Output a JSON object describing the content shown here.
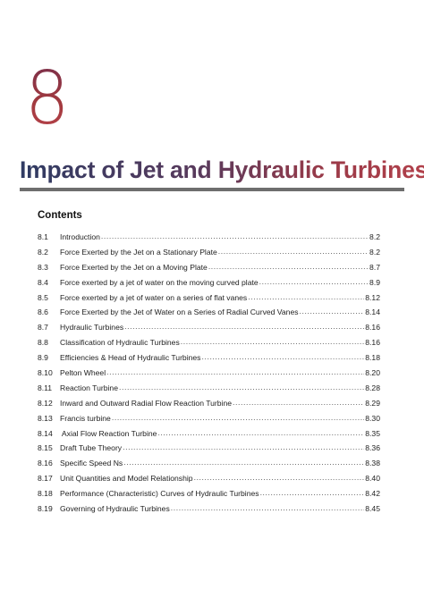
{
  "chapter": {
    "number": "8",
    "title": "Impact of Jet and Hydraulic Turbines",
    "gradient_colors": [
      "#2f3b63",
      "#9a3a48",
      "#b2404a"
    ]
  },
  "contents": {
    "heading": "Contents",
    "entries": [
      {
        "num": "8.1",
        "title": "Introduction",
        "page": "8.2"
      },
      {
        "num": "8.2",
        "title": "Force Exerted by the Jet on a Stationary Plate",
        "page": "8.2"
      },
      {
        "num": "8.3",
        "title": "Force Exerted by the Jet on a Moving Plate",
        "page": "8.7"
      },
      {
        "num": "8.4",
        "title": "Force exerted by a jet of water on the moving curved plate",
        "page": "8.9"
      },
      {
        "num": "8.5",
        "title": "Force exerted by a jet of water on a series of flat vanes",
        "page": "8.12"
      },
      {
        "num": "8.6",
        "title": "Force Exerted by the Jet of Water on a Series of Radial Curved Vanes",
        "page": "8.14"
      },
      {
        "num": "8.7",
        "title": "Hydraulic Turbines",
        "page": "8.16"
      },
      {
        "num": "8.8",
        "title": "Classification of Hydraulic Turbines",
        "page": "8.16"
      },
      {
        "num": "8.9",
        "title": "Efficiencies & Head of Hydraulic Turbines",
        "page": "8.18"
      },
      {
        "num": "8.10",
        "title": "Pelton Wheel",
        "page": "8.20"
      },
      {
        "num": "8.11",
        "title": "Reaction Turbine",
        "page": "8.28"
      },
      {
        "num": "8.12",
        "title": "Inward and Outward Radial Flow Reaction Turbine",
        "page": "8.29"
      },
      {
        "num": "8.13",
        "title": "Francis turbine",
        "page": "8.30"
      },
      {
        "num": "8.14",
        "title": " Axial Flow Reaction Turbine",
        "page": "8.35"
      },
      {
        "num": "8.15",
        "title": "Draft Tube Theory",
        "page": "8.36"
      },
      {
        "num": "8.16",
        "title": "Specific Speed Ns",
        "page": "8.38"
      },
      {
        "num": "8.17",
        "title": "Unit Quantities and Model Relationship",
        "page": "8.40"
      },
      {
        "num": "8.18",
        "title": "Performance (Characteristic) Curves of Hydraulic Turbines",
        "page": "8.42"
      },
      {
        "num": "8.19",
        "title": "Governing of Hydraulic Turbines",
        "page": "8.45"
      }
    ]
  }
}
